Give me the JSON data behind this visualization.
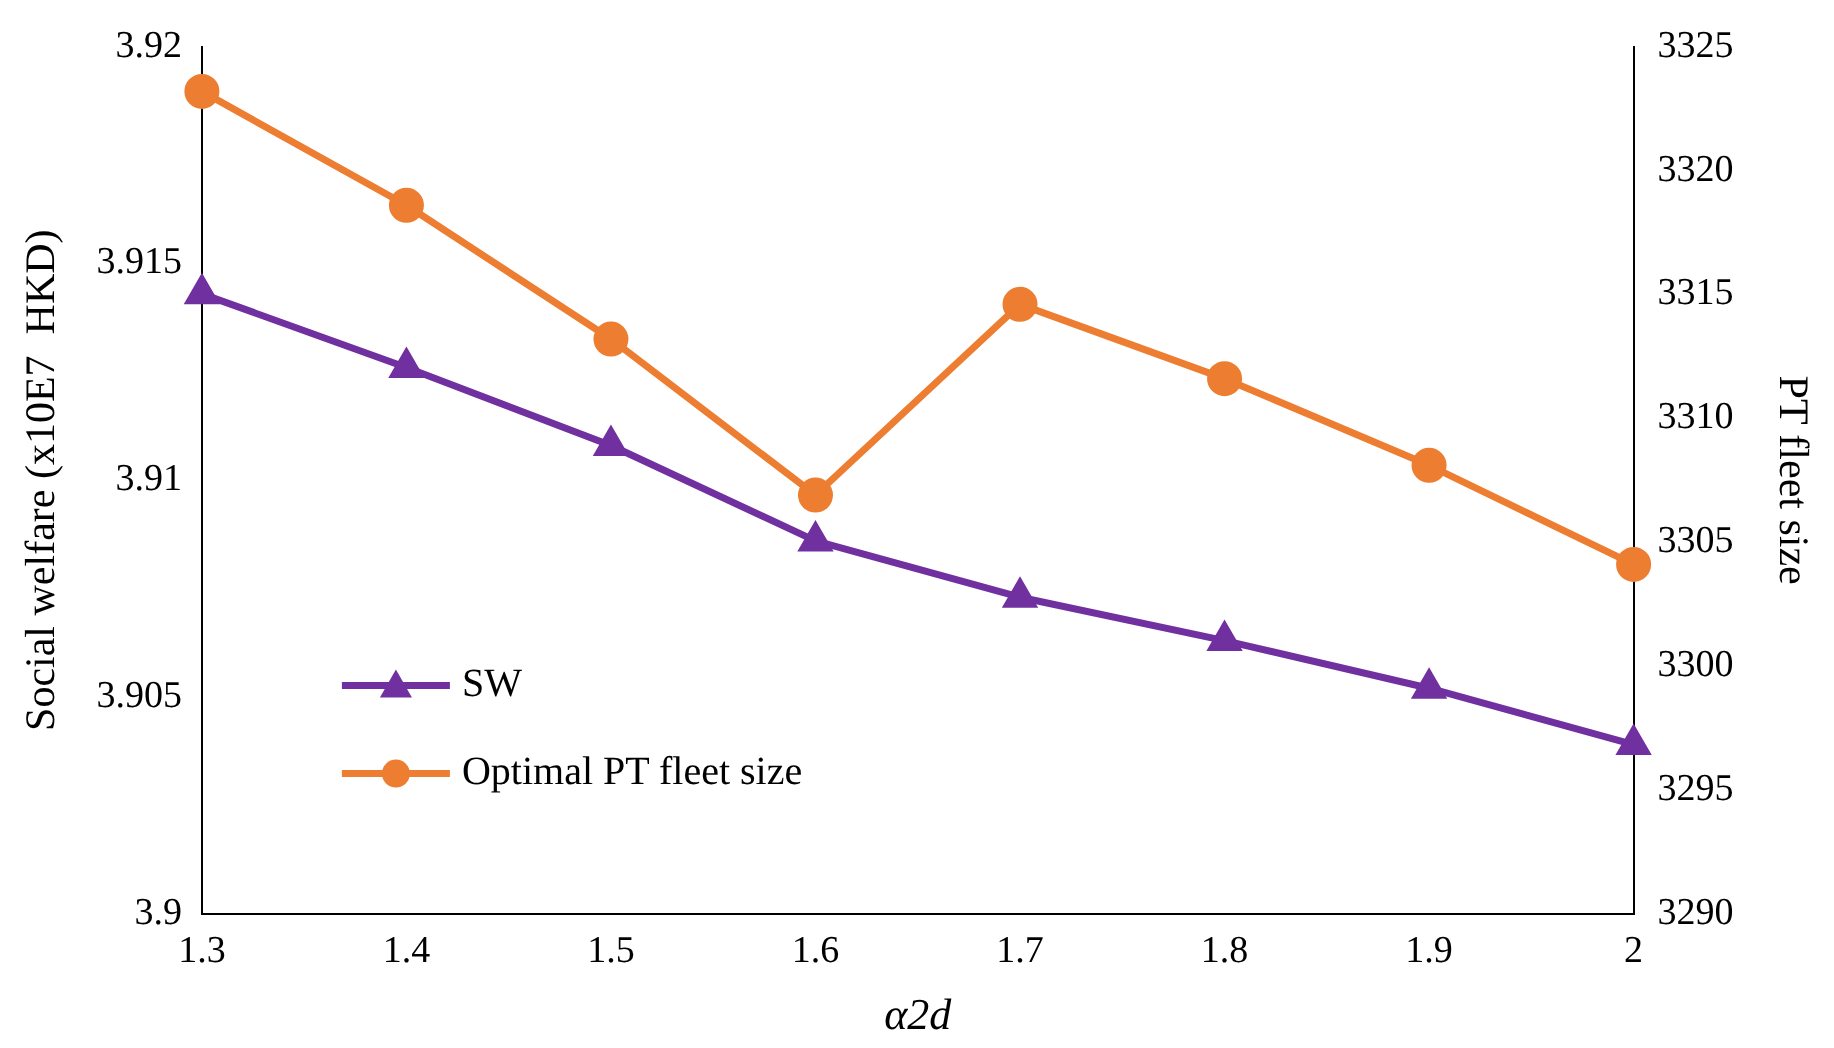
{
  "chart_data": {
    "type": "line",
    "xlabel": "α2d",
    "ylabel": "Social welfare (x10E7  HKD)",
    "y2label": "PT fleet size",
    "categories": [
      "1.3",
      "1.4",
      "1.5",
      "1.6",
      "1.7",
      "1.8",
      "1.9",
      "2"
    ],
    "series": [
      {
        "name": "SW",
        "color": "#7030a0",
        "marker": "triangle",
        "values": [
          3.9143,
          3.9126,
          3.9108,
          3.9086,
          3.9073,
          3.9063,
          3.9052,
          3.9039
        ]
      },
      {
        "name": "Optimal PT fleet size",
        "color": "#ed7d31",
        "marker": "circle",
        "axis": "y2",
        "values": [
          3323.2,
          3318.6,
          3313.2,
          3306.9,
          3314.6,
          3311.6,
          3308.1,
          3304.1
        ]
      }
    ],
    "ylim": [
      3.9,
      3.92
    ],
    "yticks": [
      3.9,
      3.905,
      3.91,
      3.915,
      3.92
    ],
    "y2lim": [
      3290,
      3325
    ],
    "y2ticks": [
      3290,
      3295,
      3300,
      3305,
      3310,
      3315,
      3320,
      3325
    ],
    "grid": false,
    "legend": "bottom left",
    "line_style": "solid"
  }
}
